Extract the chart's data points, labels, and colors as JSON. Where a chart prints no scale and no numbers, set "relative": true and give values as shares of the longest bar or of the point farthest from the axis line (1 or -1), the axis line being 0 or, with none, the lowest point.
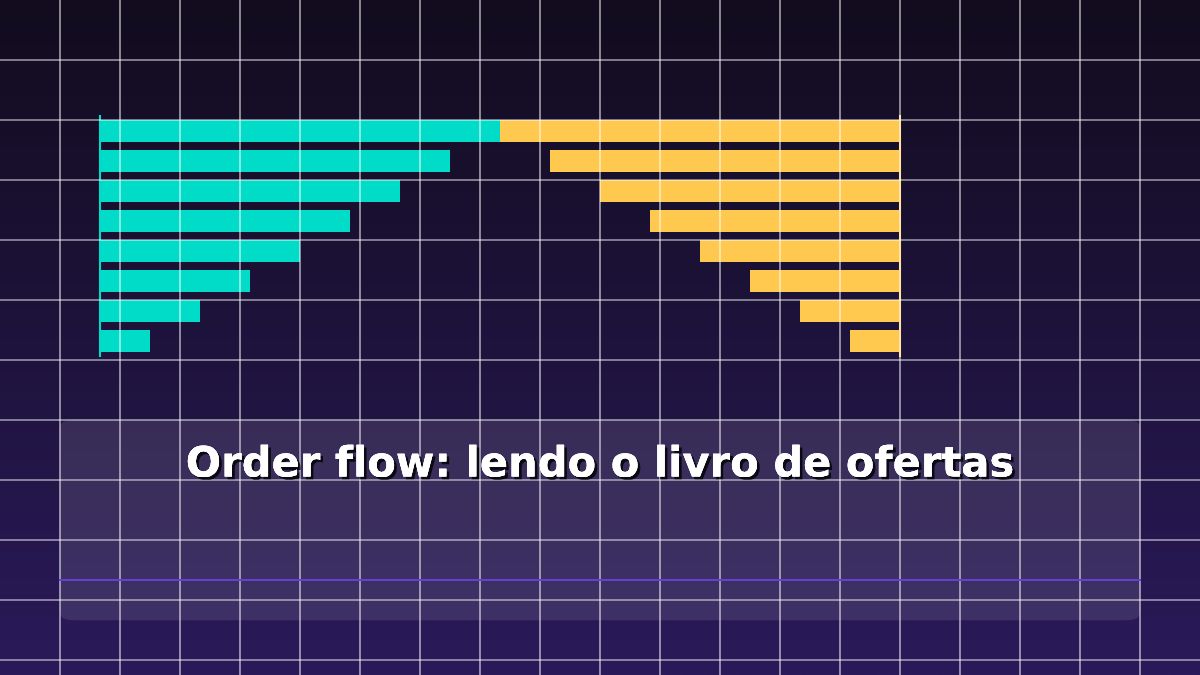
{
  "chart_data": [
    {
      "type": "other",
      "title": "Order flow: lendo o livro de ofertas"
    },
    {
      "type": "bar",
      "orientation": "horizontal",
      "relative": true,
      "categories": [
        null,
        null,
        null,
        null,
        null,
        null,
        null,
        null
      ],
      "series": [
        {
          "color": "#00dcc8",
          "values": [
            1,
            0.875,
            0.75,
            0.625,
            0.5,
            0.375,
            0.25,
            0.125
          ]
        }
      ]
    },
    {
      "type": "bar",
      "orientation": "horizontal",
      "relative": true,
      "categories": [
        null,
        null,
        null,
        null,
        null,
        null,
        null,
        null
      ],
      "series": [
        {
          "color": "#ffc84f",
          "values": [
            1,
            0.875,
            0.75,
            0.625,
            0.5,
            0.375,
            0.25,
            0.125
          ]
        }
      ]
    }
  ]
}
